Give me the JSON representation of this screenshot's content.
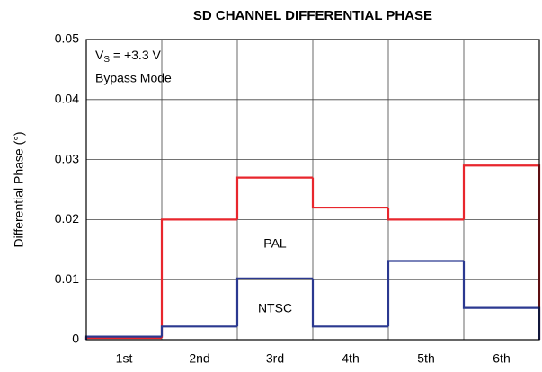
{
  "chart_data": {
    "type": "step",
    "title": "SD CHANNEL DIFFERENTIAL PHASE",
    "y_label": "Differential Phase (°)",
    "categories": [
      "1st",
      "2nd",
      "3rd",
      "4th",
      "5th",
      "6th"
    ],
    "series": [
      {
        "name": "PAL",
        "color": "#e8262d",
        "values": [
          0.0003,
          0.02,
          0.027,
          0.022,
          0.02,
          0.029
        ]
      },
      {
        "name": "NTSC",
        "color": "#2b3990",
        "values": [
          0.0005,
          0.0022,
          0.0102,
          0.0022,
          0.0131,
          0.0053
        ]
      }
    ],
    "annotations": {
      "vs_symbol": "V",
      "vs_sub": "S",
      "vs_value": " = +3.3 V",
      "mode": "Bypass Mode"
    },
    "ylim": [
      0,
      0.05
    ],
    "yticks": [
      0,
      0.01,
      0.02,
      0.03,
      0.04,
      0.05
    ],
    "grid": true
  }
}
